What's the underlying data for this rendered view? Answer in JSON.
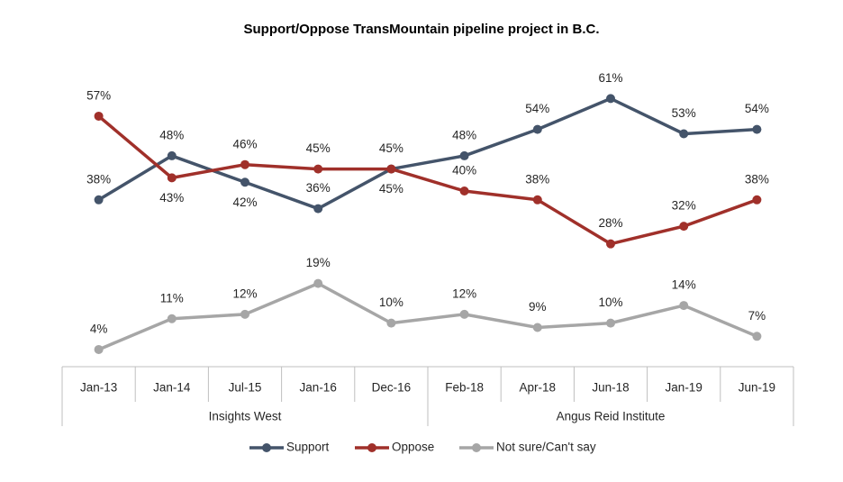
{
  "chart_data": {
    "type": "line",
    "title": "Support/Oppose TransMountain pipeline project in B.C.",
    "categories": [
      "Jan-13",
      "Jan-14",
      "Jul-15",
      "Jan-16",
      "Dec-16",
      "Feb-18",
      "Apr-18",
      "Jun-18",
      "Jan-19",
      "Jun-19"
    ],
    "groups": [
      "Insights West",
      "Angus Reid Institute"
    ],
    "series": [
      {
        "name": "Support",
        "color": "#44546a",
        "values": [
          38,
          48,
          42,
          36,
          45,
          48,
          54,
          61,
          53,
          54
        ],
        "value_labels": [
          "38%",
          "48%",
          "42%",
          "36%",
          "45%",
          "48%",
          "54%",
          "61%",
          "53%",
          "54%"
        ]
      },
      {
        "name": "Oppose",
        "color": "#a0302a",
        "values": [
          57,
          43,
          46,
          45,
          45,
          40,
          38,
          28,
          32,
          38
        ],
        "value_labels": [
          "57%",
          "43%",
          "46%",
          "45%",
          "45%",
          "40%",
          "38%",
          "28%",
          "32%",
          "38%"
        ]
      },
      {
        "name": "Not sure/Can't say",
        "color": "#a6a6a6",
        "values": [
          4,
          11,
          12,
          19,
          10,
          12,
          9,
          10,
          14,
          7
        ],
        "value_labels": [
          "4%",
          "11%",
          "12%",
          "19%",
          "10%",
          "12%",
          "9%",
          "10%",
          "14%",
          "7%"
        ]
      }
    ]
  }
}
